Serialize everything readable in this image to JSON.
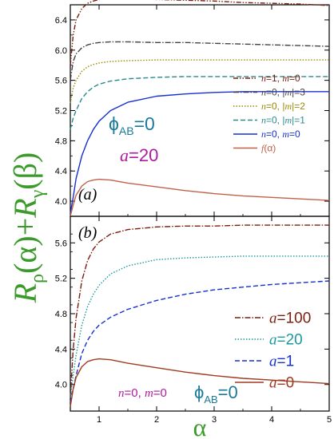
{
  "chart_data": [
    {
      "type": "line",
      "panel_label": "(a)",
      "xlim": [
        0.5,
        5
      ],
      "ylim": [
        3.8,
        6.6
      ],
      "yticks": [
        "4.0",
        "4.4",
        "4.8",
        "5.2",
        "5.6",
        "6.0",
        "6.4"
      ],
      "grid": false,
      "legend": "right",
      "annotations": {
        "phi_base": "ϕ",
        "phi_sub": "AB",
        "phi_rest": "=0",
        "a_italic": "a",
        "a_rest": "=20"
      },
      "series": [
        {
          "name_parts": [
            "n",
            "=1, ",
            "m",
            "=0"
          ],
          "color": "#7a1e10",
          "dash": "6,2,1.5,2,1.5,2",
          "x": [
            0.5,
            0.55,
            0.6,
            0.7,
            0.8,
            0.9,
            1.0,
            1.2,
            1.5,
            2.0,
            2.5,
            3.0,
            3.5,
            4.0,
            4.5,
            5.0
          ],
          "y": [
            5.8,
            6.2,
            6.4,
            6.55,
            6.62,
            6.65,
            6.67,
            6.68,
            6.68,
            6.67,
            6.66,
            6.65,
            6.63,
            6.62,
            6.61,
            6.59
          ]
        },
        {
          "name_parts": [
            "n",
            "=0, |",
            "m",
            "|=3"
          ],
          "color": "#444444",
          "dash": "7,2,1.5,2",
          "x": [
            0.5,
            0.55,
            0.6,
            0.7,
            0.8,
            0.9,
            1.0,
            1.2,
            1.5,
            2.0,
            2.5,
            3.0,
            3.5,
            4.0,
            4.5,
            5.0
          ],
          "y": [
            5.6,
            5.85,
            5.95,
            6.03,
            6.07,
            6.09,
            6.1,
            6.11,
            6.11,
            6.1,
            6.1,
            6.09,
            6.08,
            6.07,
            6.06,
            6.05
          ]
        },
        {
          "name_parts": [
            "n",
            "=0, |",
            "m",
            "|=2"
          ],
          "color": "#9a8a00",
          "dash": "1.5,2",
          "x": [
            0.5,
            0.55,
            0.6,
            0.7,
            0.8,
            0.9,
            1.0,
            1.2,
            1.5,
            2.0,
            2.5,
            3.0,
            3.5,
            4.0,
            4.5,
            5.0
          ],
          "y": [
            5.3,
            5.5,
            5.6,
            5.72,
            5.78,
            5.81,
            5.83,
            5.85,
            5.86,
            5.87,
            5.87,
            5.87,
            5.87,
            5.87,
            5.87,
            5.87
          ]
        },
        {
          "name_parts": [
            "n",
            "=0, |",
            "m",
            "|=1"
          ],
          "color": "#2a8a90",
          "dash": "6,3",
          "x": [
            0.5,
            0.55,
            0.6,
            0.7,
            0.8,
            0.9,
            1.0,
            1.2,
            1.5,
            2.0,
            2.5,
            3.0,
            3.5,
            4.0,
            4.5,
            5.0
          ],
          "y": [
            4.95,
            5.1,
            5.2,
            5.36,
            5.45,
            5.51,
            5.55,
            5.59,
            5.62,
            5.64,
            5.65,
            5.65,
            5.65,
            5.65,
            5.65,
            5.65
          ]
        },
        {
          "name_parts": [
            "n",
            "=0, ",
            "m",
            "=0"
          ],
          "color": "#1530d0",
          "dash": "",
          "x": [
            0.5,
            0.55,
            0.6,
            0.7,
            0.8,
            0.9,
            1.0,
            1.2,
            1.5,
            2.0,
            2.5,
            3.0,
            3.5,
            4.0,
            4.5,
            5.0
          ],
          "y": [
            3.84,
            4.05,
            4.3,
            4.6,
            4.8,
            4.95,
            5.06,
            5.2,
            5.31,
            5.39,
            5.42,
            5.44,
            5.45,
            5.45,
            5.45,
            5.45
          ]
        },
        {
          "name_parts": [
            "f",
            "(α)"
          ],
          "color": "#c0624a",
          "dash": "",
          "x": [
            0.5,
            0.55,
            0.6,
            0.7,
            0.8,
            0.9,
            1.0,
            1.2,
            1.5,
            2.0,
            2.5,
            3.0,
            3.5,
            4.0,
            4.5,
            5.0
          ],
          "y": [
            3.8,
            3.95,
            4.08,
            4.2,
            4.26,
            4.28,
            4.29,
            4.28,
            4.24,
            4.19,
            4.14,
            4.1,
            4.07,
            4.05,
            4.03,
            4.01
          ]
        }
      ]
    },
    {
      "type": "line",
      "panel_label": "(b)",
      "xlim": [
        0.5,
        5
      ],
      "ylim": [
        3.7,
        5.9
      ],
      "xticks": [
        "1",
        "2",
        "3",
        "4",
        "5"
      ],
      "yticks": [
        "4.0",
        "4.4",
        "4.8",
        "5.2",
        "5.6"
      ],
      "xlabel": "α",
      "ylabel": "R_ρ(α)+R_γ(β)",
      "grid": false,
      "legend": "right",
      "annotations": {
        "nm_parts": [
          "n",
          "=0, ",
          "m",
          "=0"
        ],
        "phi_base": "ϕ",
        "phi_sub": "AB",
        "phi_rest": "=0"
      },
      "series": [
        {
          "name_parts": [
            "a",
            "=100"
          ],
          "color": "#7a1e10",
          "dash": "7,2,1.5,2",
          "x": [
            0.5,
            0.55,
            0.6,
            0.7,
            0.8,
            0.9,
            1.0,
            1.2,
            1.5,
            2.0,
            2.5,
            3.0,
            3.5,
            4.0,
            4.5,
            5.0
          ],
          "y": [
            3.85,
            4.4,
            4.75,
            5.17,
            5.4,
            5.53,
            5.61,
            5.7,
            5.75,
            5.78,
            5.79,
            5.79,
            5.8,
            5.8,
            5.8,
            5.8
          ]
        },
        {
          "name_parts": [
            "a",
            "=20"
          ],
          "color": "#1a9aa0",
          "dash": "1.5,2",
          "x": [
            0.5,
            0.55,
            0.6,
            0.7,
            0.8,
            0.9,
            1.0,
            1.2,
            1.5,
            2.0,
            2.5,
            3.0,
            3.5,
            4.0,
            4.5,
            5.0
          ],
          "y": [
            3.85,
            4.1,
            4.33,
            4.67,
            4.88,
            5.02,
            5.12,
            5.25,
            5.34,
            5.41,
            5.43,
            5.44,
            5.45,
            5.45,
            5.45,
            5.45
          ]
        },
        {
          "name_parts": [
            "a",
            "=1"
          ],
          "color": "#1530d0",
          "dash": "6,3",
          "x": [
            0.5,
            0.55,
            0.6,
            0.7,
            0.8,
            0.9,
            1.0,
            1.2,
            1.5,
            2.0,
            2.5,
            3.0,
            3.5,
            4.0,
            4.5,
            5.0
          ],
          "y": [
            3.8,
            3.95,
            4.1,
            4.35,
            4.5,
            4.6,
            4.67,
            4.76,
            4.85,
            4.95,
            5.02,
            5.07,
            5.1,
            5.13,
            5.15,
            5.17
          ]
        },
        {
          "name_parts": [
            "a",
            "=0"
          ],
          "color": "#a03a20",
          "dash": "",
          "x": [
            0.5,
            0.55,
            0.6,
            0.7,
            0.8,
            0.9,
            1.0,
            1.2,
            1.5,
            2.0,
            2.5,
            3.0,
            3.5,
            4.0,
            4.5,
            5.0
          ],
          "y": [
            3.75,
            3.95,
            4.08,
            4.2,
            4.26,
            4.28,
            4.29,
            4.28,
            4.24,
            4.19,
            4.14,
            4.1,
            4.07,
            4.05,
            4.03,
            4.01
          ]
        }
      ]
    }
  ],
  "ylabel_parts": {
    "r1": "R",
    "s1": "ρ",
    "m1": "(α)+",
    "r2": "R",
    "s2": "γ",
    "m2": "(β)"
  },
  "colors": {
    "label_green": "#3a9a2a",
    "annot_teal": "#1a7a9a",
    "annot_magenta": "#b01aa0"
  }
}
